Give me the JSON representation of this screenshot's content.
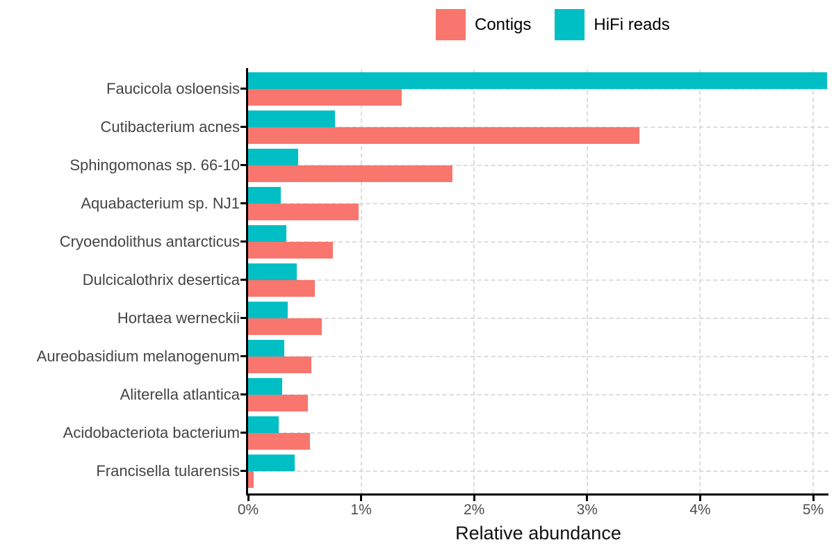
{
  "legend": {
    "items": [
      {
        "label": "Contigs",
        "color": "#F8766D"
      },
      {
        "label": "HiFi reads",
        "color": "#00BFC4"
      }
    ]
  },
  "chart_data": {
    "type": "bar",
    "orientation": "horizontal",
    "title": "",
    "xlabel": "Relative abundance",
    "ylabel": "",
    "x_tick_labels": [
      "0%",
      "1%",
      "2%",
      "3%",
      "4%",
      "5%"
    ],
    "x_tick_values": [
      0,
      1,
      2,
      3,
      4,
      5
    ],
    "x_range": [
      0,
      5.14
    ],
    "grid": "dashed",
    "legend_position": "top",
    "categories": [
      "Faucicola osloensis",
      "Cutibacterium acnes",
      "Sphingomonas sp. 66-10",
      "Aquabacterium sp. NJ1",
      "Cryoendolithus antarcticus",
      "Dulcicalothrix desertica",
      "Hortaea werneckii",
      "Aureobasidium melanogenum",
      "Aliterella atlantica",
      "Acidobacteriota bacterium",
      "Francisella tularensis"
    ],
    "series": [
      {
        "name": "HiFi reads",
        "color": "#00BFC4",
        "position_in_group": "top",
        "values": [
          5.12,
          0.77,
          0.44,
          0.29,
          0.34,
          0.43,
          0.35,
          0.32,
          0.3,
          0.27,
          0.41
        ]
      },
      {
        "name": "Contigs",
        "color": "#F8766D",
        "position_in_group": "bottom",
        "values": [
          1.36,
          3.46,
          1.81,
          0.98,
          0.75,
          0.59,
          0.65,
          0.56,
          0.53,
          0.55,
          0.05
        ]
      }
    ],
    "note_units": "percent relative abundance; top HiFi bar clipped at panel edge"
  },
  "colors": {
    "contigs": "#F8766D",
    "hifi_reads": "#00BFC4",
    "axis": "#000000",
    "grid": "#dcdcdc",
    "category_label_text": "#444444",
    "tick_label_text": "#4d4d4d",
    "axis_title_text": "#111111"
  }
}
